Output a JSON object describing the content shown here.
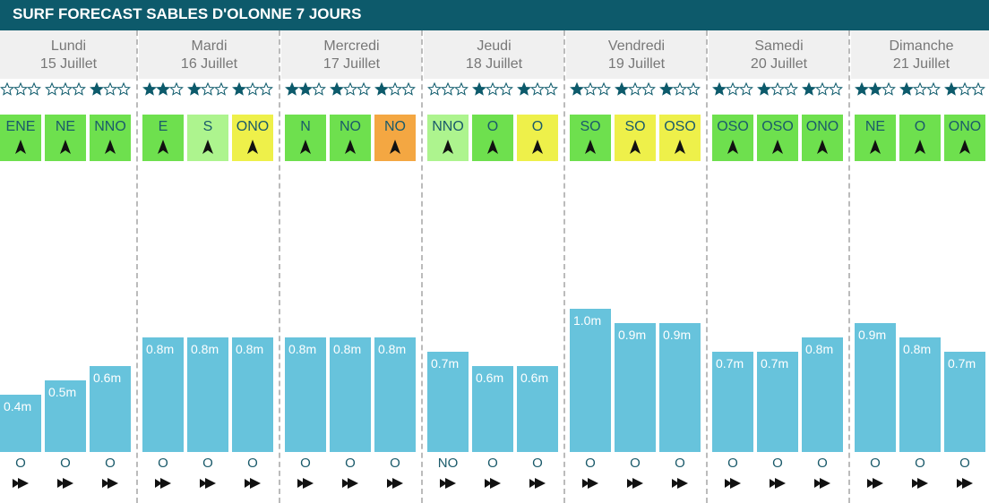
{
  "header": {
    "title": "SURF FORECAST SABLES D'OLONNE 7 JOURS"
  },
  "days": [
    {
      "name": "Lundi",
      "date": "15 Juillet",
      "slots": [
        {
          "rating": 0,
          "wind": "ENE",
          "wind_color": "#6ee04e",
          "height": 0.4,
          "height_label": "0.4m",
          "swell": "O"
        },
        {
          "rating": 0,
          "wind": "NE",
          "wind_color": "#6ee04e",
          "height": 0.5,
          "height_label": "0.5m",
          "swell": "O"
        },
        {
          "rating": 1,
          "wind": "NNO",
          "wind_color": "#6ee04e",
          "height": 0.6,
          "height_label": "0.6m",
          "swell": "O"
        }
      ]
    },
    {
      "name": "Mardi",
      "date": "16 Juillet",
      "slots": [
        {
          "rating": 2,
          "wind": "E",
          "wind_color": "#6ee04e",
          "height": 0.8,
          "height_label": "0.8m",
          "swell": "O"
        },
        {
          "rating": 1,
          "wind": "S",
          "wind_color": "#adf48e",
          "height": 0.8,
          "height_label": "0.8m",
          "swell": "O"
        },
        {
          "rating": 1,
          "wind": "ONO",
          "wind_color": "#eef04a",
          "height": 0.8,
          "height_label": "0.8m",
          "swell": "O"
        }
      ]
    },
    {
      "name": "Mercredi",
      "date": "17 Juillet",
      "slots": [
        {
          "rating": 2,
          "wind": "N",
          "wind_color": "#6ee04e",
          "height": 0.8,
          "height_label": "0.8m",
          "swell": "O"
        },
        {
          "rating": 1,
          "wind": "NO",
          "wind_color": "#6ee04e",
          "height": 0.8,
          "height_label": "0.8m",
          "swell": "O"
        },
        {
          "rating": 1,
          "wind": "NO",
          "wind_color": "#f4a742",
          "height": 0.8,
          "height_label": "0.8m",
          "swell": "O"
        }
      ]
    },
    {
      "name": "Jeudi",
      "date": "18 Juillet",
      "slots": [
        {
          "rating": 0,
          "wind": "NNO",
          "wind_color": "#adf48e",
          "height": 0.7,
          "height_label": "0.7m",
          "swell": "NO"
        },
        {
          "rating": 1,
          "wind": "O",
          "wind_color": "#6ee04e",
          "height": 0.6,
          "height_label": "0.6m",
          "swell": "O"
        },
        {
          "rating": 1,
          "wind": "O",
          "wind_color": "#eef04a",
          "height": 0.6,
          "height_label": "0.6m",
          "swell": "O"
        }
      ]
    },
    {
      "name": "Vendredi",
      "date": "19 Juillet",
      "slots": [
        {
          "rating": 1,
          "wind": "SO",
          "wind_color": "#6ee04e",
          "height": 1.0,
          "height_label": "1.0m",
          "swell": "O"
        },
        {
          "rating": 1,
          "wind": "SO",
          "wind_color": "#eef04a",
          "height": 0.9,
          "height_label": "0.9m",
          "swell": "O"
        },
        {
          "rating": 1,
          "wind": "OSO",
          "wind_color": "#eef04a",
          "height": 0.9,
          "height_label": "0.9m",
          "swell": "O"
        }
      ]
    },
    {
      "name": "Samedi",
      "date": "20 Juillet",
      "slots": [
        {
          "rating": 1,
          "wind": "OSO",
          "wind_color": "#6ee04e",
          "height": 0.7,
          "height_label": "0.7m",
          "swell": "O"
        },
        {
          "rating": 1,
          "wind": "OSO",
          "wind_color": "#6ee04e",
          "height": 0.7,
          "height_label": "0.7m",
          "swell": "O"
        },
        {
          "rating": 1,
          "wind": "ONO",
          "wind_color": "#6ee04e",
          "height": 0.8,
          "height_label": "0.8m",
          "swell": "O"
        }
      ]
    },
    {
      "name": "Dimanche",
      "date": "21 Juillet",
      "slots": [
        {
          "rating": 2,
          "wind": "NE",
          "wind_color": "#6ee04e",
          "height": 0.9,
          "height_label": "0.9m",
          "swell": "O"
        },
        {
          "rating": 1,
          "wind": "O",
          "wind_color": "#6ee04e",
          "height": 0.8,
          "height_label": "0.8m",
          "swell": "O"
        },
        {
          "rating": 1,
          "wind": "ONO",
          "wind_color": "#6ee04e",
          "height": 0.7,
          "height_label": "0.7m",
          "swell": "O"
        }
      ]
    }
  ]
}
